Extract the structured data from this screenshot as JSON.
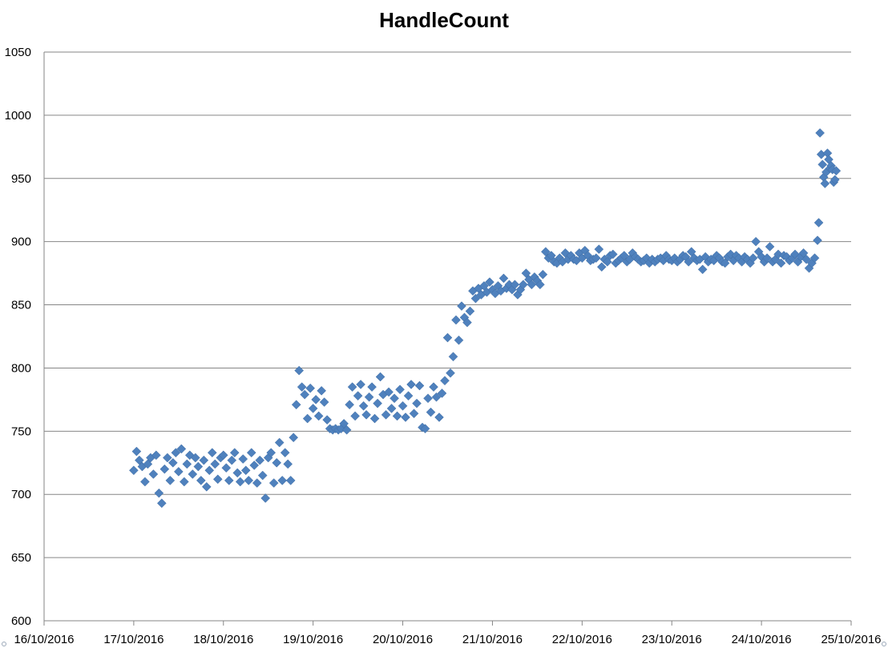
{
  "chart_data": {
    "type": "scatter",
    "title": "HandleCount",
    "xlabel": "",
    "ylabel": "",
    "x_type": "date",
    "xlim": [
      "16/10/2016",
      "25/10/2016"
    ],
    "ylim": [
      600,
      1050
    ],
    "x_ticks": [
      "16/10/2016",
      "17/10/2016",
      "18/10/2016",
      "19/10/2016",
      "20/10/2016",
      "21/10/2016",
      "22/10/2016",
      "23/10/2016",
      "24/10/2016",
      "25/10/2016"
    ],
    "y_ticks": [
      600,
      650,
      700,
      750,
      800,
      850,
      900,
      950,
      1000,
      1050
    ],
    "grid": "horizontal",
    "legend": "none",
    "marker": "diamond",
    "color": "#4F81BD",
    "series": [
      {
        "x": [
          "17/10/2016 00:00",
          "17/10/2016 00:45",
          "17/10/2016 01:30",
          "17/10/2016 02:15",
          "17/10/2016 03:00",
          "17/10/2016 03:45",
          "17/10/2016 04:30",
          "17/10/2016 05:15",
          "17/10/2016 06:00",
          "17/10/2016 06:45",
          "17/10/2016 07:30",
          "17/10/2016 08:15",
          "17/10/2016 09:00",
          "17/10/2016 09:45",
          "17/10/2016 10:30",
          "17/10/2016 11:15",
          "17/10/2016 12:00",
          "17/10/2016 12:45",
          "17/10/2016 13:30",
          "17/10/2016 14:15",
          "17/10/2016 15:00",
          "17/10/2016 15:45",
          "17/10/2016 16:30",
          "17/10/2016 17:15",
          "17/10/2016 18:00",
          "17/10/2016 18:45",
          "17/10/2016 19:30",
          "17/10/2016 20:15",
          "17/10/2016 21:00",
          "17/10/2016 21:45",
          "17/10/2016 22:30",
          "17/10/2016 23:15",
          "18/10/2016 00:00",
          "18/10/2016 00:45",
          "18/10/2016 01:30",
          "18/10/2016 02:15",
          "18/10/2016 03:00",
          "18/10/2016 03:45",
          "18/10/2016 04:30",
          "18/10/2016 05:15",
          "18/10/2016 06:00",
          "18/10/2016 06:45",
          "18/10/2016 07:30",
          "18/10/2016 08:15",
          "18/10/2016 09:00",
          "18/10/2016 09:45",
          "18/10/2016 10:30",
          "18/10/2016 11:15",
          "18/10/2016 12:00",
          "18/10/2016 12:45",
          "18/10/2016 13:30",
          "18/10/2016 14:15",
          "18/10/2016 15:00",
          "18/10/2016 15:45",
          "18/10/2016 16:30",
          "18/10/2016 17:15",
          "18/10/2016 18:00",
          "18/10/2016 18:45",
          "18/10/2016 19:30",
          "18/10/2016 20:15",
          "18/10/2016 21:00",
          "18/10/2016 21:45",
          "18/10/2016 22:30",
          "18/10/2016 23:15",
          "19/10/2016 00:00",
          "19/10/2016 00:45",
          "19/10/2016 01:30",
          "19/10/2016 02:15",
          "19/10/2016 03:00",
          "19/10/2016 03:45",
          "19/10/2016 04:30",
          "19/10/2016 05:15",
          "19/10/2016 06:00",
          "19/10/2016 06:45",
          "19/10/2016 07:30",
          "19/10/2016 08:15",
          "19/10/2016 09:00",
          "19/10/2016 09:45",
          "19/10/2016 10:30",
          "19/10/2016 11:15",
          "19/10/2016 12:00",
          "19/10/2016 12:45",
          "19/10/2016 13:30",
          "19/10/2016 14:15",
          "19/10/2016 15:00",
          "19/10/2016 15:45",
          "19/10/2016 16:30",
          "19/10/2016 17:15",
          "19/10/2016 18:00",
          "19/10/2016 18:45",
          "19/10/2016 19:30",
          "19/10/2016 20:15",
          "19/10/2016 21:00",
          "19/10/2016 21:45",
          "19/10/2016 22:30",
          "19/10/2016 23:15",
          "20/10/2016 00:00",
          "20/10/2016 00:45",
          "20/10/2016 01:30",
          "20/10/2016 02:15",
          "20/10/2016 03:00",
          "20/10/2016 03:45",
          "20/10/2016 04:30",
          "20/10/2016 05:15",
          "20/10/2016 06:00",
          "20/10/2016 06:45",
          "20/10/2016 07:30",
          "20/10/2016 08:15",
          "20/10/2016 09:00",
          "20/10/2016 09:45",
          "20/10/2016 10:30",
          "20/10/2016 11:15",
          "20/10/2016 12:00",
          "20/10/2016 12:45",
          "20/10/2016 13:30",
          "20/10/2016 14:15",
          "20/10/2016 15:00",
          "20/10/2016 15:45",
          "20/10/2016 16:30",
          "20/10/2016 17:15",
          "20/10/2016 18:00",
          "20/10/2016 18:45",
          "20/10/2016 19:30",
          "20/10/2016 20:15",
          "20/10/2016 21:00",
          "20/10/2016 21:45",
          "20/10/2016 22:30",
          "20/10/2016 23:15",
          "21/10/2016 00:00",
          "21/10/2016 00:45",
          "21/10/2016 01:30",
          "21/10/2016 02:15",
          "21/10/2016 03:00",
          "21/10/2016 03:45",
          "21/10/2016 04:30",
          "21/10/2016 05:15",
          "21/10/2016 06:00",
          "21/10/2016 06:45",
          "21/10/2016 07:30",
          "21/10/2016 08:15",
          "21/10/2016 09:00",
          "21/10/2016 09:45",
          "21/10/2016 10:30",
          "21/10/2016 11:15",
          "21/10/2016 12:00",
          "21/10/2016 12:45",
          "21/10/2016 13:30",
          "21/10/2016 14:15",
          "21/10/2016 15:00",
          "21/10/2016 15:45",
          "21/10/2016 16:30",
          "21/10/2016 17:15",
          "21/10/2016 18:00",
          "21/10/2016 18:45",
          "21/10/2016 19:30",
          "21/10/2016 20:15",
          "21/10/2016 21:00",
          "21/10/2016 21:45",
          "21/10/2016 22:30",
          "21/10/2016 23:15",
          "22/10/2016 00:00",
          "22/10/2016 00:45",
          "22/10/2016 01:30",
          "22/10/2016 02:15",
          "22/10/2016 03:00",
          "22/10/2016 03:45",
          "22/10/2016 04:30",
          "22/10/2016 05:15",
          "22/10/2016 06:00",
          "22/10/2016 06:45",
          "22/10/2016 07:30",
          "22/10/2016 08:15",
          "22/10/2016 09:00",
          "22/10/2016 09:45",
          "22/10/2016 10:30",
          "22/10/2016 11:15",
          "22/10/2016 12:00",
          "22/10/2016 12:45",
          "22/10/2016 13:30",
          "22/10/2016 14:15",
          "22/10/2016 15:00",
          "22/10/2016 15:45",
          "22/10/2016 16:30",
          "22/10/2016 17:15",
          "22/10/2016 18:00",
          "22/10/2016 18:45",
          "22/10/2016 19:30",
          "22/10/2016 20:15",
          "22/10/2016 21:00",
          "22/10/2016 21:45",
          "22/10/2016 22:30",
          "22/10/2016 23:15",
          "23/10/2016 00:00",
          "23/10/2016 00:45",
          "23/10/2016 01:30",
          "23/10/2016 02:15",
          "23/10/2016 03:00",
          "23/10/2016 03:45",
          "23/10/2016 04:30",
          "23/10/2016 05:15",
          "23/10/2016 06:00",
          "23/10/2016 06:45",
          "23/10/2016 07:30",
          "23/10/2016 08:15",
          "23/10/2016 09:00",
          "23/10/2016 09:45",
          "23/10/2016 10:30",
          "23/10/2016 11:15",
          "23/10/2016 12:00",
          "23/10/2016 12:45",
          "23/10/2016 13:30",
          "23/10/2016 14:15",
          "23/10/2016 15:00",
          "23/10/2016 15:45",
          "23/10/2016 16:30",
          "23/10/2016 17:15",
          "23/10/2016 18:00",
          "23/10/2016 18:45",
          "23/10/2016 19:30",
          "23/10/2016 20:15",
          "23/10/2016 21:00",
          "23/10/2016 21:45",
          "23/10/2016 22:30",
          "23/10/2016 23:15",
          "24/10/2016 00:00",
          "24/10/2016 00:45",
          "24/10/2016 01:30",
          "24/10/2016 02:15",
          "24/10/2016 03:00",
          "24/10/2016 03:45",
          "24/10/2016 04:30",
          "24/10/2016 05:15",
          "24/10/2016 06:00",
          "24/10/2016 06:45",
          "24/10/2016 07:30",
          "24/10/2016 08:15",
          "24/10/2016 09:00",
          "24/10/2016 09:45",
          "24/10/2016 10:30",
          "24/10/2016 11:15",
          "24/10/2016 12:00",
          "24/10/2016 12:45",
          "24/10/2016 13:30",
          "24/10/2016 14:15",
          "24/10/2016 15:00",
          "24/10/2016 15:20",
          "24/10/2016 15:40",
          "24/10/2016 16:00",
          "24/10/2016 16:20",
          "24/10/2016 16:40",
          "24/10/2016 17:00",
          "24/10/2016 17:20",
          "24/10/2016 17:40",
          "24/10/2016 18:00",
          "24/10/2016 18:20",
          "24/10/2016 18:40",
          "24/10/2016 19:00",
          "24/10/2016 19:20",
          "24/10/2016 19:40",
          "24/10/2016 20:00"
        ],
        "y": [
          719,
          734,
          727,
          722,
          710,
          724,
          729,
          716,
          731,
          701,
          693,
          720,
          729,
          711,
          725,
          733,
          718,
          736,
          710,
          724,
          731,
          716,
          729,
          722,
          711,
          727,
          706,
          719,
          733,
          724,
          712,
          729,
          731,
          721,
          711,
          727,
          733,
          717,
          710,
          728,
          719,
          711,
          733,
          723,
          709,
          727,
          715,
          697,
          729,
          733,
          709,
          725,
          741,
          711,
          733,
          724,
          711,
          745,
          771,
          798,
          785,
          779,
          760,
          784,
          768,
          775,
          762,
          782,
          773,
          759,
          752,
          751,
          752,
          751,
          752,
          756,
          751,
          771,
          785,
          762,
          778,
          787,
          770,
          763,
          777,
          785,
          760,
          772,
          793,
          779,
          763,
          781,
          768,
          776,
          762,
          783,
          770,
          761,
          778,
          787,
          764,
          772,
          786,
          753,
          752,
          776,
          765,
          785,
          777,
          761,
          780,
          790,
          824,
          796,
          809,
          838,
          822,
          849,
          840,
          836,
          845,
          861,
          855,
          863,
          858,
          865,
          860,
          868,
          862,
          859,
          865,
          861,
          871,
          863,
          866,
          862,
          866,
          858,
          862,
          866,
          875,
          870,
          866,
          872,
          869,
          866,
          874,
          892,
          887,
          889,
          884,
          883,
          887,
          884,
          891,
          886,
          889,
          886,
          885,
          891,
          887,
          893,
          889,
          885,
          886,
          887,
          894,
          880,
          886,
          884,
          889,
          890,
          883,
          885,
          887,
          889,
          884,
          886,
          891,
          888,
          886,
          884,
          885,
          887,
          883,
          886,
          884,
          886,
          887,
          885,
          889,
          886,
          885,
          887,
          884,
          886,
          889,
          888,
          884,
          892,
          887,
          885,
          886,
          878,
          888,
          884,
          886,
          885,
          889,
          887,
          884,
          883,
          888,
          890,
          885,
          889,
          887,
          884,
          888,
          886,
          883,
          887,
          900,
          892,
          888,
          884,
          887,
          896,
          884,
          886,
          890,
          883,
          889,
          888,
          885,
          887,
          890,
          884,
          888,
          891,
          886,
          879,
          883,
          887,
          901,
          915,
          986,
          969,
          961,
          951,
          946,
          955,
          970,
          965,
          958,
          960,
          957,
          947,
          949,
          956
        ]
      }
    ]
  }
}
